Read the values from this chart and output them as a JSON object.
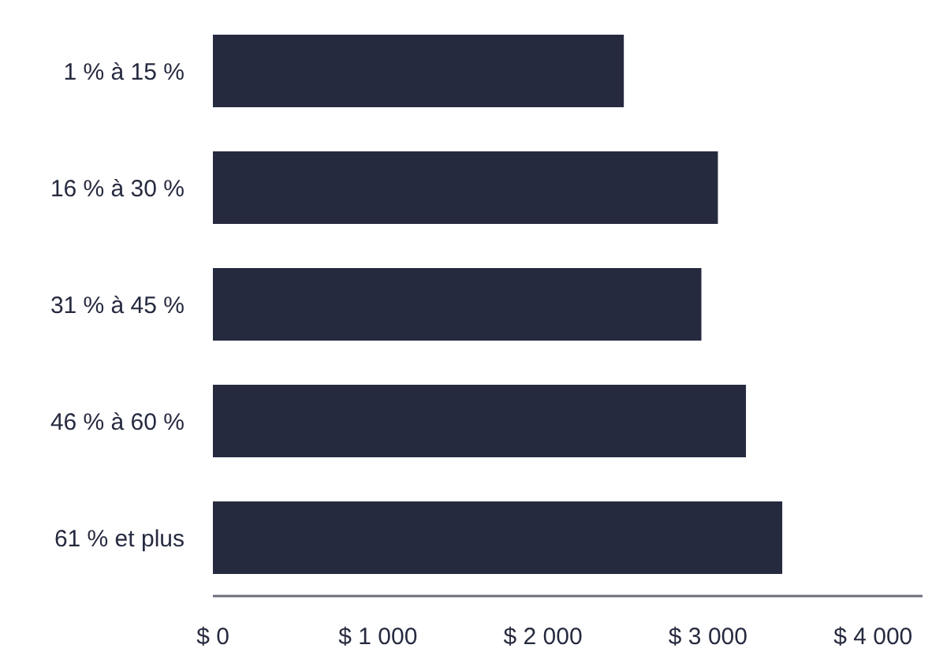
{
  "chart_data": {
    "type": "bar",
    "orientation": "horizontal",
    "categories": [
      "1 % à 15 %",
      "16 % à 30 %",
      "31 % à 45 %",
      "46 % à 60 %",
      "61 % et plus"
    ],
    "values": [
      2490,
      3060,
      2960,
      3230,
      3450
    ],
    "color": "#262a3f",
    "xlim": [
      0,
      4300
    ],
    "xticks": [
      {
        "value": 0,
        "label": "$ 0"
      },
      {
        "value": 1000,
        "label": "$ 1 000"
      },
      {
        "value": 2000,
        "label": "$ 2 000"
      },
      {
        "value": 3000,
        "label": "$ 3 000"
      },
      {
        "value": 4000,
        "label": "$ 4 000"
      }
    ],
    "grid": false,
    "legend": false
  }
}
